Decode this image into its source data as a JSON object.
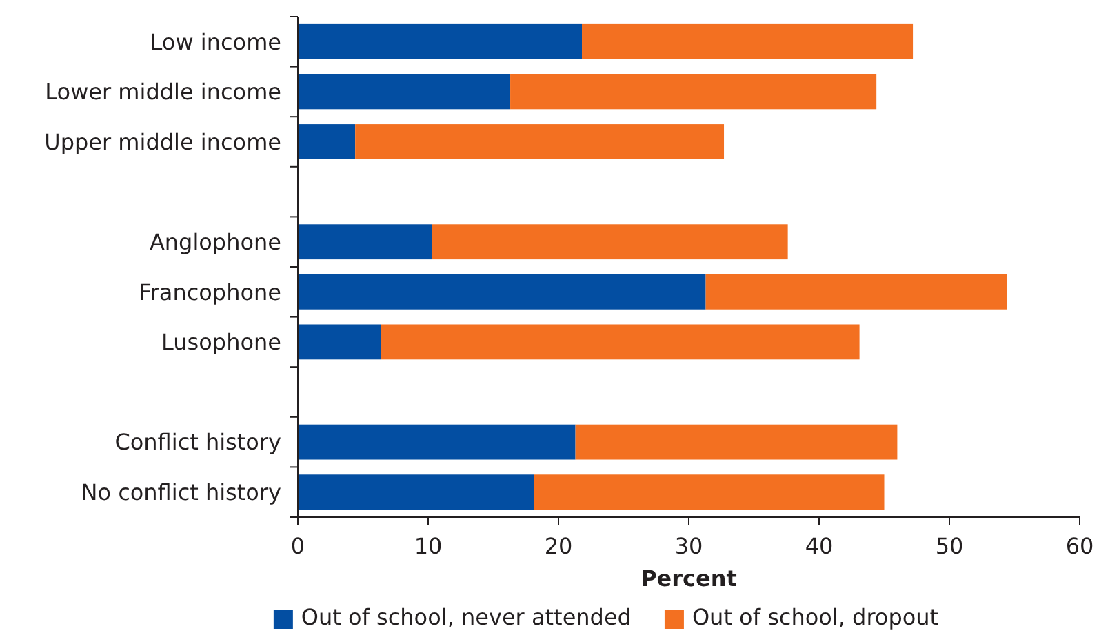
{
  "chart_data": {
    "type": "bar",
    "orientation": "horizontal",
    "stacked": true,
    "categories": [
      "Low income",
      "Lower middle income",
      "Upper middle income",
      null,
      "Anglophone",
      "Francophone",
      "Lusophone",
      null,
      "Conflict history",
      "No conflict history"
    ],
    "series": [
      {
        "name": "Out of school, never attended",
        "color": "#034ea2",
        "values": [
          21.8,
          16.3,
          4.4,
          null,
          10.3,
          31.3,
          6.4,
          null,
          21.3,
          18.1
        ]
      },
      {
        "name": "Out of school, dropout",
        "color": "#f37021",
        "values": [
          25.4,
          28.1,
          28.3,
          null,
          27.3,
          23.1,
          36.7,
          null,
          24.7,
          26.9
        ]
      }
    ],
    "xlabel": "Percent",
    "xlim": [
      0,
      60
    ],
    "xticks": [
      0,
      10,
      20,
      30,
      40,
      50,
      60
    ],
    "grid": false,
    "legend": "bottom"
  }
}
